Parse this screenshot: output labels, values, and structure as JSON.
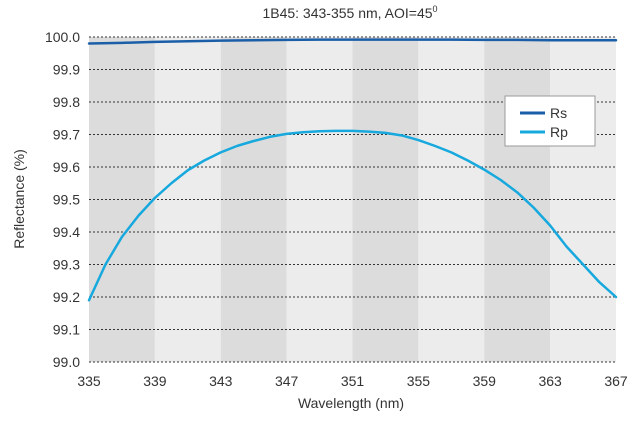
{
  "chart_data": {
    "type": "line",
    "title": "1B45: 343-355 nm, AOI=45",
    "title_superscript": "0",
    "xlabel": "Wavelength (nm)",
    "ylabel": "Reflectance (%)",
    "xlim": [
      335,
      367
    ],
    "ylim": [
      99.0,
      100.0
    ],
    "x_ticks": [
      335,
      339,
      343,
      347,
      351,
      355,
      359,
      363,
      367
    ],
    "x_tick_labels": [
      "335",
      "339",
      "343",
      "347",
      "351",
      "355",
      "359",
      "363",
      "367"
    ],
    "y_ticks": [
      99.0,
      99.1,
      99.2,
      99.3,
      99.4,
      99.5,
      99.6,
      99.7,
      99.8,
      99.9,
      100.0
    ],
    "y_tick_labels": [
      "99.0",
      "99.1",
      "99.2",
      "99.3",
      "99.4",
      "99.5",
      "99.6",
      "99.7",
      "99.8",
      "99.9",
      "100.0"
    ],
    "grid": "horizontal-dotted",
    "background_bands": [
      {
        "from": 335,
        "to": 339,
        "shade": "dark"
      },
      {
        "from": 339,
        "to": 343,
        "shade": "light"
      },
      {
        "from": 343,
        "to": 347,
        "shade": "dark"
      },
      {
        "from": 347,
        "to": 351,
        "shade": "light"
      },
      {
        "from": 351,
        "to": 355,
        "shade": "dark"
      },
      {
        "from": 355,
        "to": 359,
        "shade": "light"
      },
      {
        "from": 359,
        "to": 363,
        "shade": "dark"
      },
      {
        "from": 363,
        "to": 367,
        "shade": "light"
      }
    ],
    "band_colors": {
      "dark": "#dcdcdd",
      "light": "#ececed"
    },
    "legend": {
      "position": "right"
    },
    "series": [
      {
        "name": "Rs",
        "color": "#1a5ea8",
        "x": [
          335,
          337,
          339,
          341,
          343,
          345,
          347,
          349,
          351,
          353,
          355,
          357,
          359,
          361,
          363,
          365,
          367
        ],
        "y": [
          99.98,
          99.982,
          99.985,
          99.987,
          99.989,
          99.99,
          99.991,
          99.992,
          99.992,
          99.992,
          99.992,
          99.992,
          99.991,
          99.991,
          99.99,
          99.99,
          99.99
        ]
      },
      {
        "name": "Rp",
        "color": "#17a9dd",
        "x": [
          335,
          336,
          337,
          338,
          339,
          340,
          341,
          342,
          343,
          344,
          345,
          346,
          347,
          348,
          349,
          350,
          351,
          352,
          353,
          354,
          355,
          356,
          357,
          358,
          359,
          360,
          361,
          362,
          363,
          364,
          365,
          366,
          367
        ],
        "y": [
          99.19,
          99.3,
          99.385,
          99.45,
          99.505,
          99.55,
          99.59,
          99.62,
          99.645,
          99.665,
          99.68,
          99.693,
          99.702,
          99.707,
          99.71,
          99.711,
          99.711,
          99.709,
          99.705,
          99.697,
          99.683,
          99.665,
          99.645,
          99.62,
          99.592,
          99.56,
          99.522,
          99.475,
          99.42,
          99.355,
          99.3,
          99.245,
          99.2
        ]
      }
    ]
  }
}
